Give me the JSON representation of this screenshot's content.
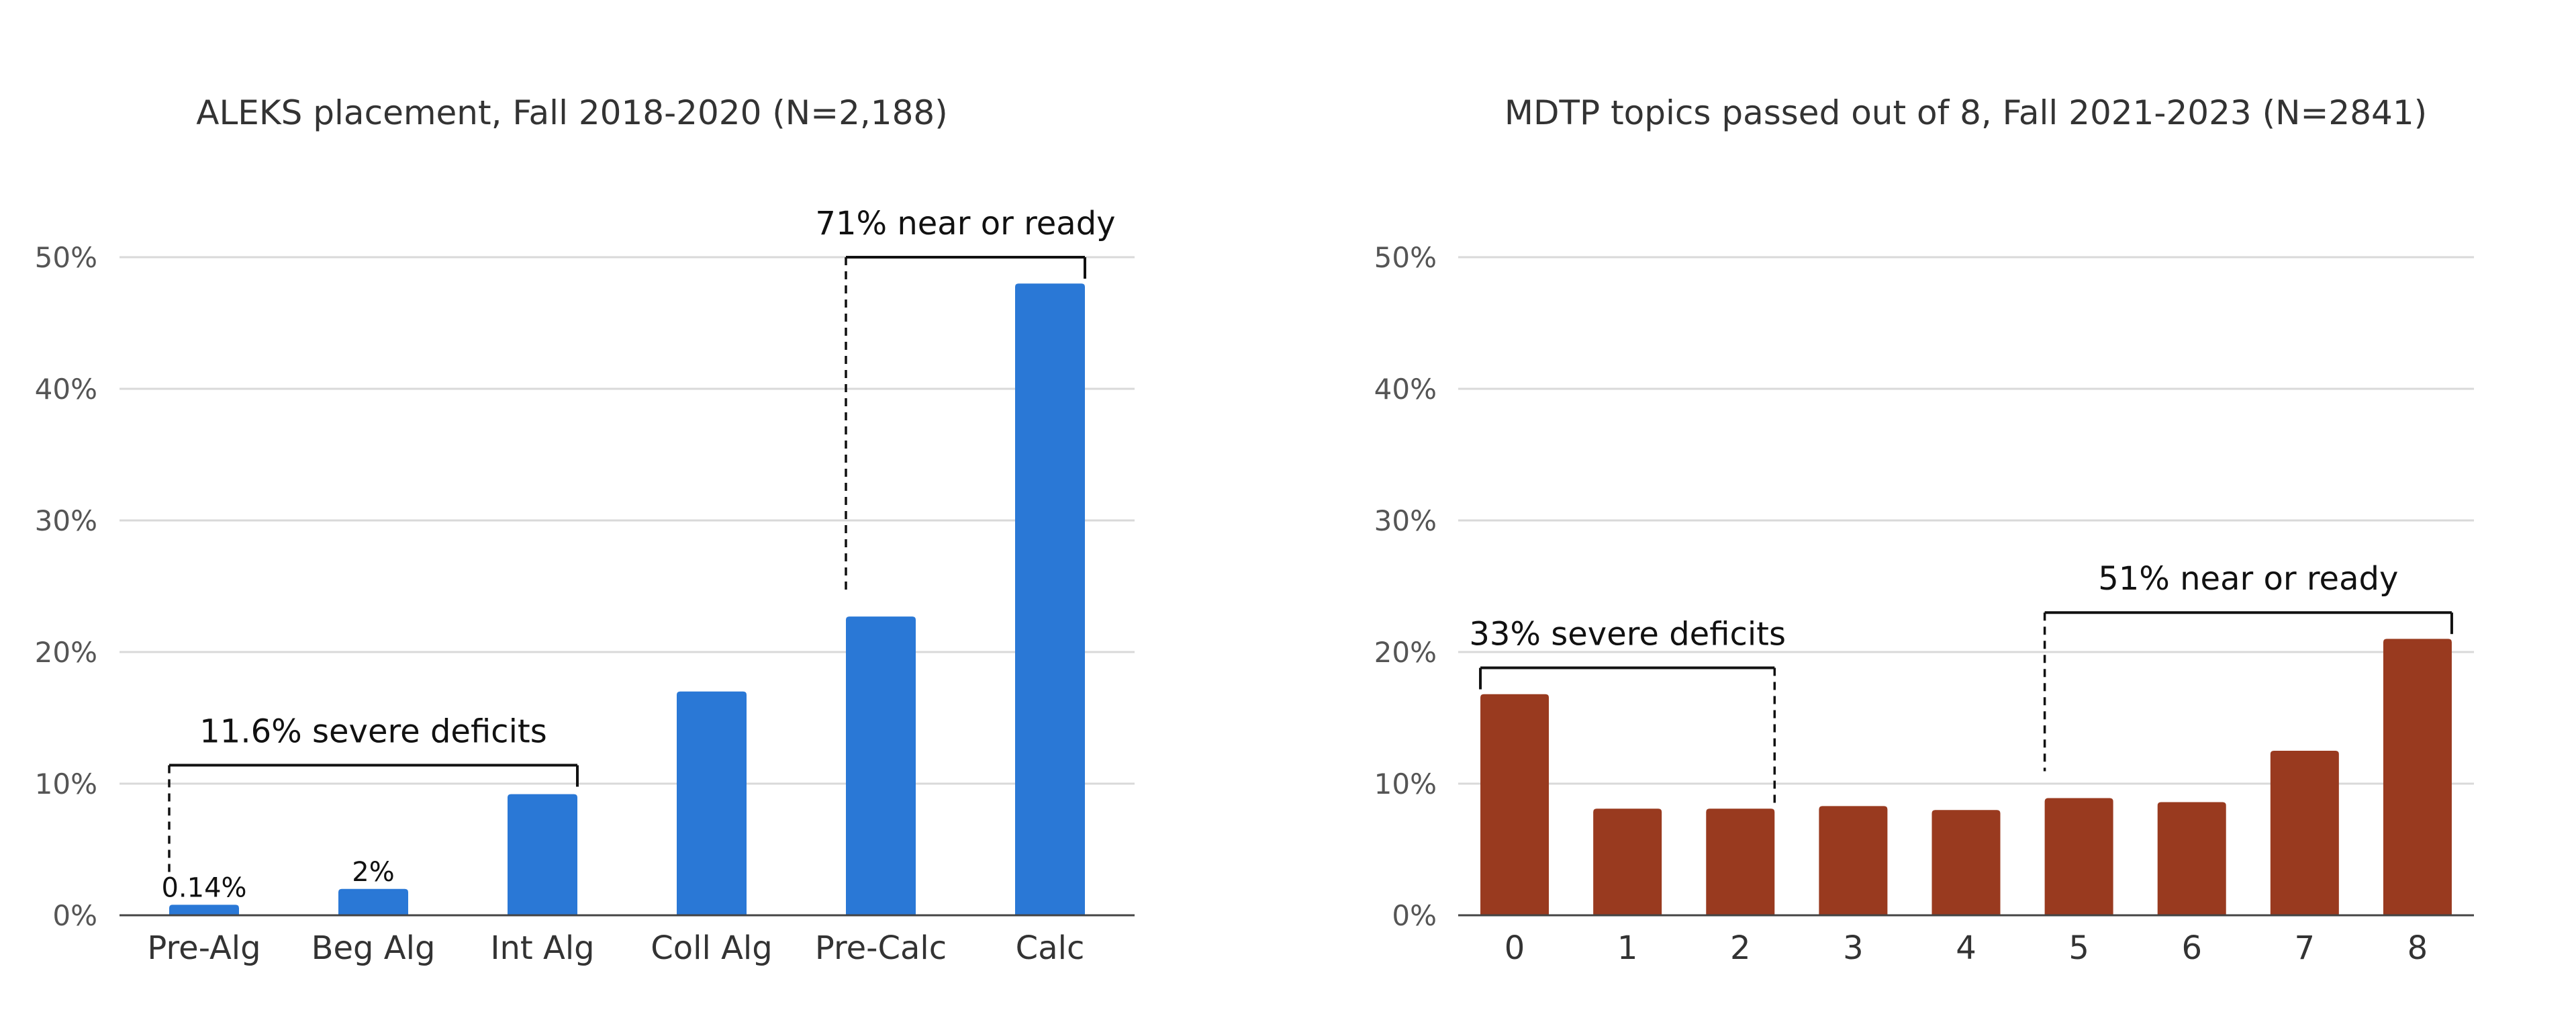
{
  "chart_data": [
    {
      "type": "bar",
      "title": "ALEKS placement, Fall 2018-2020 (N=2,188)",
      "categories": [
        "Pre-Alg",
        "Beg Alg",
        "Int Alg",
        "Coll Alg",
        "Pre-Calc",
        "Calc"
      ],
      "values": [
        0.14,
        2,
        9.2,
        17,
        22.7,
        48
      ],
      "data_labels": [
        "0.14%",
        "2%",
        "",
        "",
        "",
        ""
      ],
      "ylim": [
        0,
        50
      ],
      "yticks": [
        "0%",
        "10%",
        "20%",
        "30%",
        "40%",
        "50%"
      ],
      "grid": true,
      "color": "#2a78d6",
      "annotations": [
        {
          "text": "11.6% severe deficits",
          "from": 0,
          "to": 2,
          "level": 11.4
        },
        {
          "text": "71% near or ready",
          "from": 4,
          "to": 5,
          "level": 50
        }
      ]
    },
    {
      "type": "bar",
      "title": "MDTP topics passed out of 8, Fall 2021-2023 (N=2841)",
      "categories": [
        "0",
        "1",
        "2",
        "3",
        "4",
        "5",
        "6",
        "7",
        "8"
      ],
      "values": [
        16.8,
        8.1,
        8.1,
        8.3,
        8.0,
        8.9,
        8.6,
        12.5,
        21.0
      ],
      "data_labels": [
        "",
        "",
        "",
        "",
        "",
        "",
        "",
        "",
        ""
      ],
      "ylim": [
        0,
        50
      ],
      "yticks": [
        "0%",
        "10%",
        "20%",
        "30%",
        "40%",
        "50%"
      ],
      "grid": true,
      "color": "#993a1f",
      "annotations": [
        {
          "text": "33% severe deficits",
          "from": 0,
          "to": 2,
          "level": 18.8
        },
        {
          "text": "51% near or ready",
          "from": 5,
          "to": 8,
          "level": 23
        }
      ]
    }
  ]
}
